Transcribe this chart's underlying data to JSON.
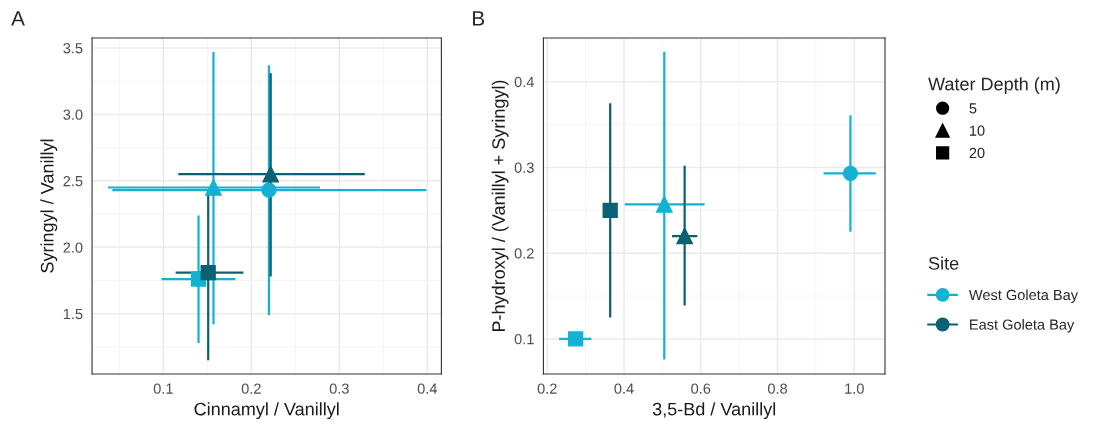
{
  "chart_data": [
    {
      "type": "scatter",
      "title": "A",
      "xlabel": "Cinnamyl / Vanillyl",
      "ylabel": "Syringyl / Vanillyl",
      "xlim": [
        0.019,
        0.416
      ],
      "ylim": [
        1.046,
        3.575
      ],
      "xticks": [
        0.1,
        0.2,
        0.3,
        0.4
      ],
      "yticks": [
        1.5,
        {
          "value": 2,
          "label": "2.0"
        },
        2.5,
        {
          "value": 3,
          "label": "3.0"
        },
        3.5
      ],
      "grid": true,
      "legend": "right",
      "legend_title": "Site",
      "series": [
        {
          "name": "West Goleta Bay",
          "color": "#13b2d2",
          "marker": [
            "circle",
            "triangle",
            "square"
          ],
          "x": [
            0.22,
            0.157,
            0.14
          ],
          "values": [
            2.43,
            2.45,
            1.76
          ],
          "errors": [
            [
              1.49,
              3.37
            ],
            [
              1.42,
              3.47
            ],
            [
              1.28,
              2.24
            ]
          ],
          "xerrors": [
            [
              0.042,
              0.399
            ],
            [
              0.037,
              0.278
            ],
            [
              0.098,
              0.182
            ]
          ]
        },
        {
          "name": "East Goleta Bay",
          "color": "#0b6174",
          "marker": [
            "triangle",
            "square"
          ],
          "x": [
            0.222,
            0.151
          ],
          "values": [
            2.55,
            1.81
          ],
          "errors": [
            [
              1.78,
              3.31
            ],
            [
              1.15,
              2.42
            ]
          ],
          "xerrors": [
            [
              0.117,
              0.329
            ],
            [
              0.114,
              0.191
            ]
          ]
        }
      ]
    },
    {
      "type": "scatter",
      "title": "B",
      "xlabel": "3,5-Bd / Vanillyl",
      "ylabel": "P-hydroxyl / (Vanillyl + Syringyl)",
      "xlim": [
        0.19,
        1.08
      ],
      "ylim": [
        0.059,
        0.451
      ],
      "xticks": [
        0.2,
        0.4,
        0.6,
        0.8,
        {
          "value": 1,
          "label": "1.0"
        }
      ],
      "yticks": [
        0.1,
        0.2,
        0.3,
        0.4
      ],
      "grid": true,
      "legend": "right",
      "legend_title": "Water Depth (m)",
      "annotations": [
        "5",
        "10",
        "20"
      ],
      "series": [
        {
          "color": "#13b2d2",
          "marker": [
            "circle",
            "triangle",
            "square"
          ],
          "x": [
            0.99,
            0.505,
            0.274
          ],
          "values": [
            0.293,
            0.257,
            0.1
          ],
          "errors": [
            [
              0.225,
              0.361
            ],
            [
              0.076,
              0.435
            ],
            null
          ],
          "xerrors": [
            [
              0.92,
              1.056
            ],
            [
              0.402,
              0.61
            ],
            [
              0.231,
              0.315
            ]
          ]
        },
        {
          "color": "#0b6174",
          "marker": [
            "triangle",
            "square"
          ],
          "x": [
            0.558,
            0.364
          ],
          "values": [
            0.22,
            0.25
          ],
          "errors": [
            [
              0.139,
              0.302
            ],
            [
              0.125,
              0.375
            ]
          ],
          "xerrors": [
            [
              0.525,
              0.591
            ],
            null
          ]
        }
      ]
    }
  ]
}
